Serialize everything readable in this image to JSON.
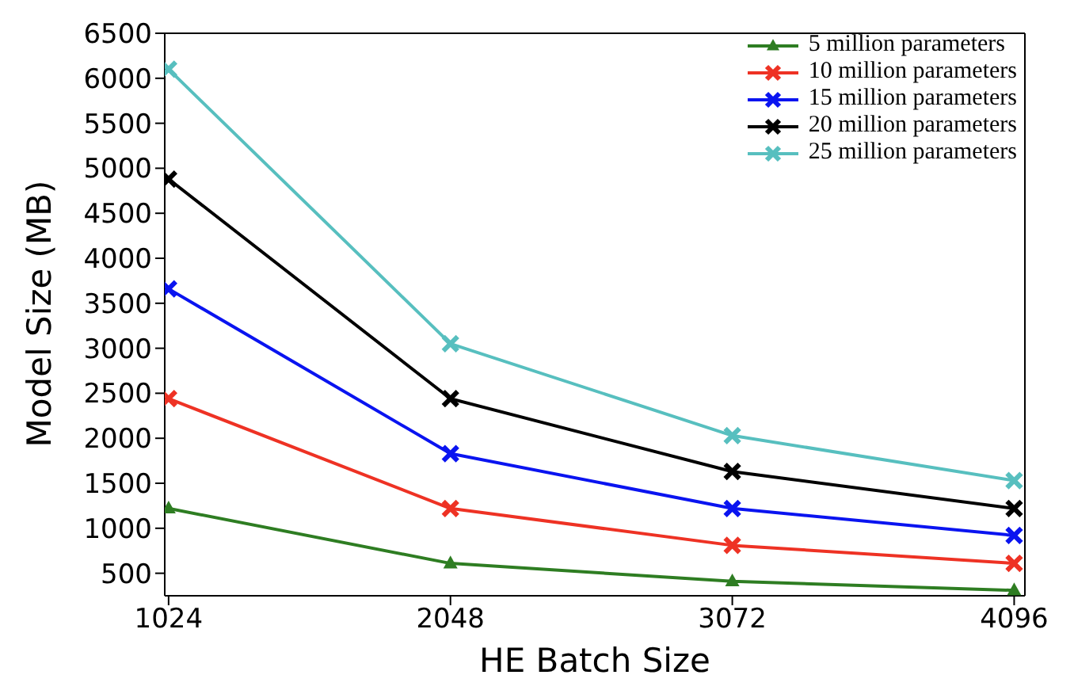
{
  "chart_data": {
    "type": "line",
    "xlabel": "HE Batch Size",
    "ylabel": "Model Size (MB)",
    "x": [
      1024,
      2048,
      3072,
      4096
    ],
    "xlim": [
      1010,
      4135
    ],
    "xticks": [
      1024,
      2048,
      3072,
      4096
    ],
    "ylim": [
      250,
      6500
    ],
    "yticks": [
      500,
      1000,
      1500,
      2000,
      2500,
      3000,
      3500,
      4000,
      4500,
      5000,
      5500,
      6000,
      6500
    ],
    "grid": false,
    "legend": "top right",
    "line_style": "solid",
    "series": [
      {
        "name": "5 million parameters",
        "color": "#2e7d22",
        "marker": "triangle",
        "values": [
          1220,
          610,
          410,
          310
        ]
      },
      {
        "name": "10 million parameters",
        "color": "#ee3224",
        "marker": "cross",
        "values": [
          2440,
          1220,
          810,
          610
        ]
      },
      {
        "name": "15 million parameters",
        "color": "#0a14f0",
        "marker": "cross",
        "values": [
          3660,
          1830,
          1220,
          920
        ]
      },
      {
        "name": "20 million parameters",
        "color": "#000000",
        "marker": "cross",
        "values": [
          4880,
          2440,
          1630,
          1220
        ]
      },
      {
        "name": "25 million parameters",
        "color": "#57bfbf",
        "marker": "cross",
        "values": [
          6100,
          3050,
          2030,
          1530
        ]
      }
    ]
  }
}
